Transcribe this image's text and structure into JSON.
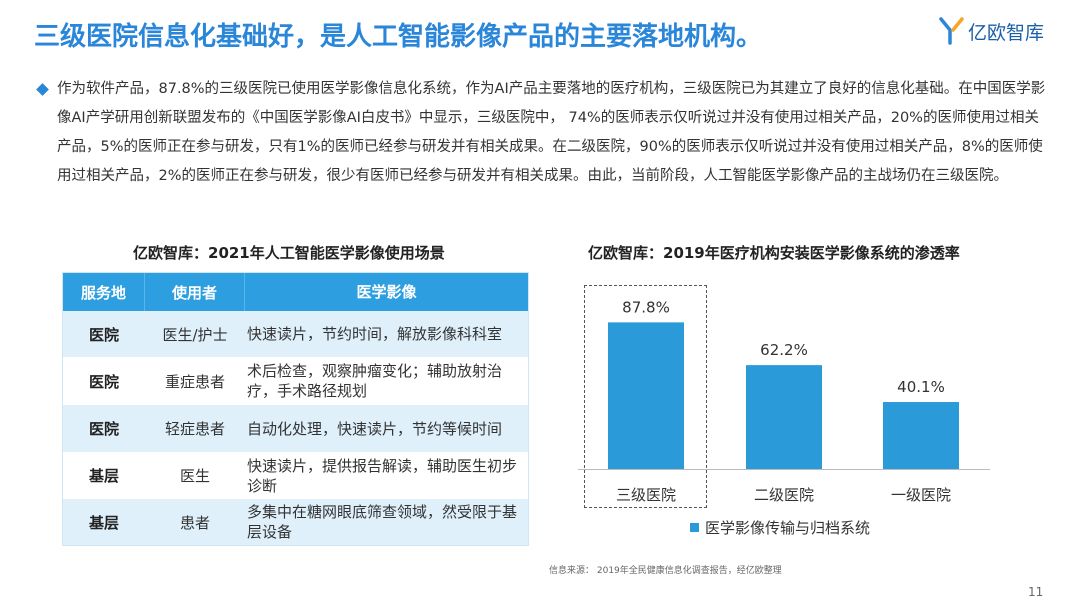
{
  "header": {
    "title": "三级医院信息化基础好，是人工智能影像产品的主要落地机构。",
    "logo_text": "亿欧智库"
  },
  "intro": {
    "text": "作为软件产品，87.8%的三级医院已使用医学影像信息化系统，作为AI产品主要落地的医疗机构，三级医院已为其建立了良好的信息化基础。在中国医学影像AI产学研用创新联盟发布的《中国医学影像AI白皮书》中显示，三级医院中， 74%的医师表示仅听说过并没有使用过相关产品，20%的医师使用过相关产品，5%的医师正在参与研发，只有1%的医师已经参与研发并有相关成果。在二级医院，90%的医师表示仅听说过并没有使用过相关产品，8%的医师使用过相关产品，2%的医师正在参与研发，很少有医师已经参与研发并有相关成果。由此，当前阶段，人工智能医学影像产品的主战场仍在三级医院。"
  },
  "table_section": {
    "title": "亿欧智库：2021年人工智能医学影像使用场景",
    "headers": [
      "服务地",
      "使用者",
      "医学影像"
    ],
    "rows": [
      {
        "place": "医院",
        "user": "医生/护士",
        "image": "快速读片，节约时间，解放影像科科室"
      },
      {
        "place": "医院",
        "user": "重症患者",
        "image": "术后检查，观察肿瘤变化；辅助放射治疗，手术路径规划"
      },
      {
        "place": "医院",
        "user": "轻症患者",
        "image": "自动化处理，快速读片，节约等候时间"
      },
      {
        "place": "基层",
        "user": "医生",
        "image": "快速读片，提供报告解读，辅助医生初步诊断"
      },
      {
        "place": "基层",
        "user": "患者",
        "image": "多集中在糖网眼底筛查领域，然受限于基层设备"
      }
    ]
  },
  "chart_section": {
    "title": "亿欧智库：2019年医疗机构安装医学影像系统的渗透率"
  },
  "chart_data": {
    "type": "bar",
    "categories": [
      "三级医院",
      "二级医院",
      "一级医院"
    ],
    "series": [
      {
        "name": "医学影像传输与归档系统",
        "values": [
          87.8,
          62.2,
          40.1
        ]
      }
    ],
    "value_labels": [
      "87.8%",
      "62.2%",
      "40.1%"
    ],
    "ylim": [
      0,
      100
    ],
    "bar_color": "#2a9ad9",
    "highlighted_category": "三级医院",
    "legend_position": "bottom"
  },
  "footer": {
    "source": "信息来源：  2019年全民健康信息化调查报告，经亿欧整理",
    "page_number": "11"
  },
  "colors": {
    "accent": "#2a86d8",
    "table_header": "#2d9ee0",
    "table_stripe": "#dff0fb"
  }
}
